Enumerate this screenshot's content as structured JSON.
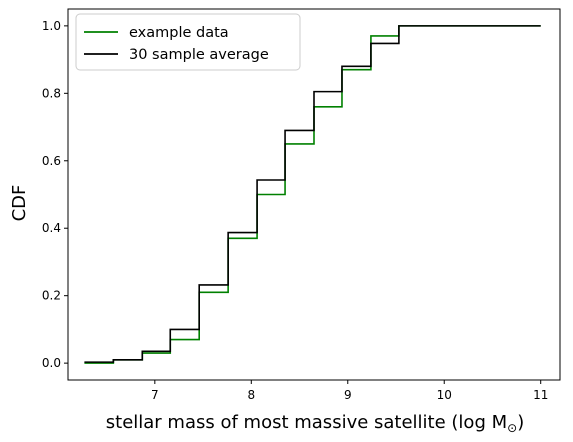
{
  "chart_data": {
    "type": "line",
    "step": true,
    "title": "",
    "xlabel": "stellar mass of most massive satellite (log M",
    "xlabel_sub": "⊙",
    "xlabel_close": ")",
    "ylabel": "CDF",
    "xlim": [
      6.1,
      11.2
    ],
    "ylim": [
      -0.05,
      1.05
    ],
    "xticks": [
      7,
      8,
      9,
      10,
      11
    ],
    "yticks": [
      0.0,
      0.2,
      0.4,
      0.6,
      0.8,
      1.0
    ],
    "xtick_labels": [
      "7",
      "8",
      "9",
      "10",
      "11"
    ],
    "ytick_labels": [
      "0.0",
      "0.2",
      "0.4",
      "0.6",
      "0.8",
      "1.0"
    ],
    "grid": false,
    "legend_position": "top-left",
    "series": [
      {
        "name": "example data",
        "color": "#008000",
        "x": [
          6.27,
          6.57,
          6.87,
          7.16,
          7.46,
          7.76,
          8.06,
          8.35,
          8.65,
          8.94,
          9.24,
          9.53,
          11.0
        ],
        "y": [
          0.0,
          0.01,
          0.03,
          0.07,
          0.21,
          0.37,
          0.5,
          0.65,
          0.76,
          0.87,
          0.97,
          1.0,
          1.0
        ]
      },
      {
        "name": "30 sample average",
        "color": "#000000",
        "x": [
          6.27,
          6.57,
          6.87,
          7.16,
          7.46,
          7.76,
          8.06,
          8.35,
          8.65,
          8.94,
          9.24,
          9.53,
          11.0
        ],
        "y": [
          0.003,
          0.01,
          0.035,
          0.1,
          0.232,
          0.387,
          0.543,
          0.69,
          0.805,
          0.88,
          0.948,
          1.0,
          1.0
        ]
      }
    ]
  }
}
